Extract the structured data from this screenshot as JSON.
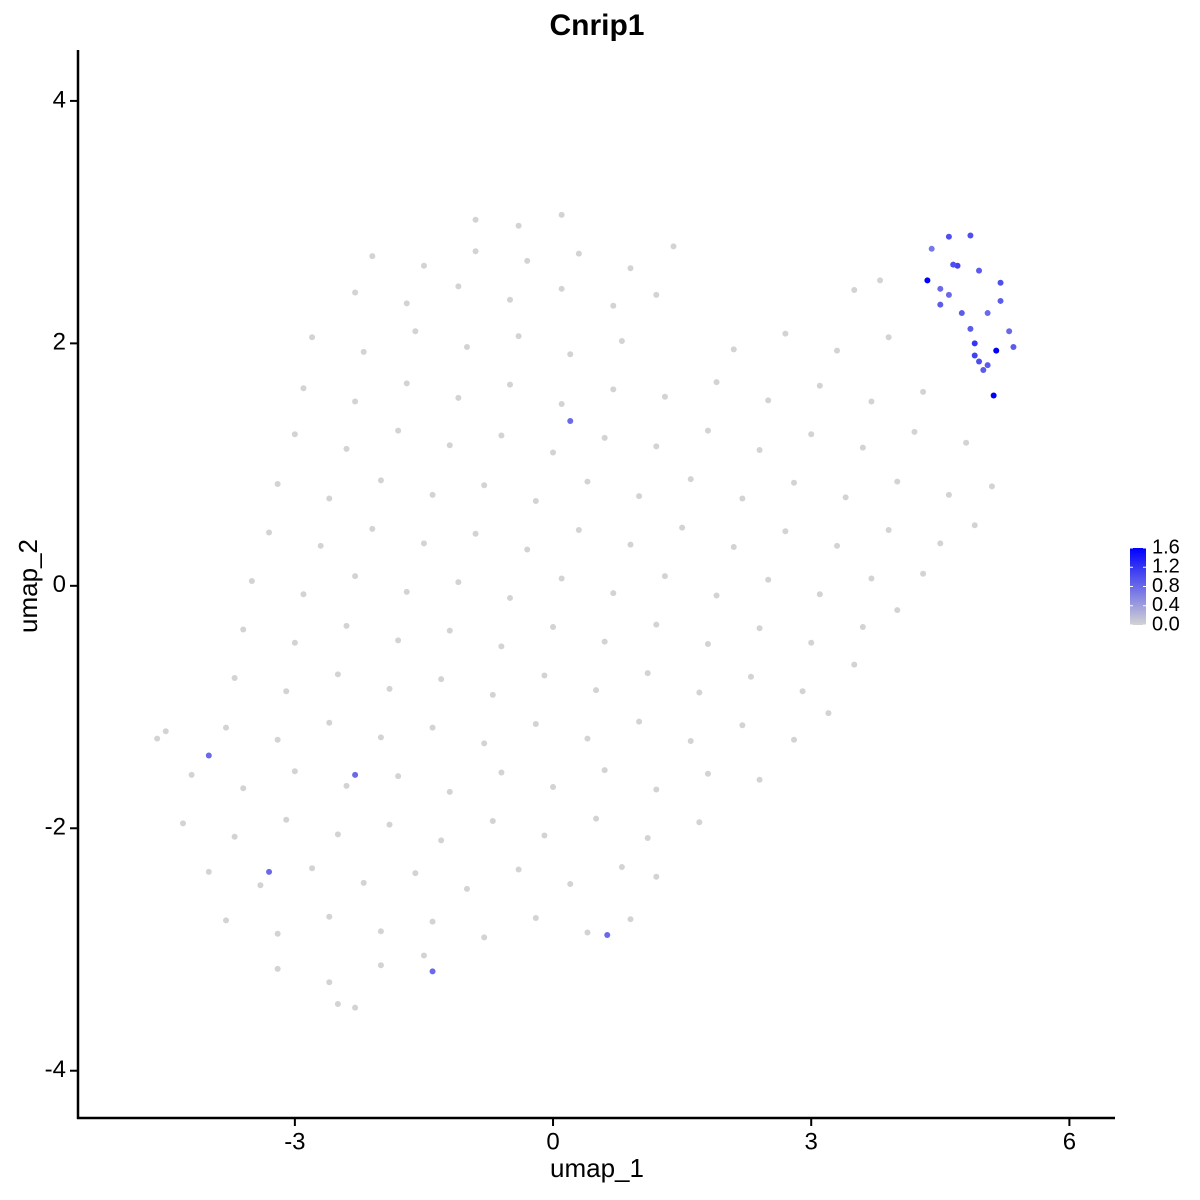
{
  "chart_data": {
    "type": "scatter",
    "title": "Cnrip1",
    "x_label": "umap_1",
    "y_label": "umap_2",
    "x": [
      -0.9,
      -0.4,
      0.1,
      -2.1,
      -1.5,
      -0.9,
      -0.3,
      0.3,
      0.9,
      1.4,
      -2.3,
      -1.7,
      -1.1,
      -0.5,
      0.1,
      0.7,
      1.2,
      3.5,
      3.8,
      -2.8,
      -2.2,
      -1.6,
      -1.0,
      -0.4,
      0.2,
      0.8,
      2.1,
      2.7,
      3.3,
      3.9,
      -2.9,
      -2.3,
      -1.7,
      -1.1,
      -0.5,
      0.1,
      0.7,
      1.3,
      1.9,
      2.5,
      3.1,
      3.7,
      4.3,
      -3.0,
      -2.4,
      -1.8,
      -1.2,
      -0.6,
      0.0,
      0.6,
      1.2,
      1.8,
      2.4,
      3.0,
      3.6,
      4.2,
      4.8,
      -3.2,
      -2.6,
      -2.0,
      -1.4,
      -0.8,
      -0.2,
      0.4,
      1.0,
      1.6,
      2.2,
      2.8,
      3.4,
      4.0,
      4.6,
      5.1,
      -3.3,
      -2.7,
      -2.1,
      -1.5,
      -0.9,
      -0.3,
      0.3,
      0.9,
      1.5,
      2.1,
      2.7,
      3.3,
      3.9,
      4.5,
      4.9,
      -3.5,
      -2.9,
      -2.3,
      -1.7,
      -1.1,
      -0.5,
      0.1,
      0.7,
      1.3,
      1.9,
      2.5,
      3.1,
      3.7,
      4.3,
      -3.6,
      -3.0,
      -2.4,
      -1.8,
      -1.2,
      -0.6,
      0.0,
      0.6,
      1.2,
      1.8,
      2.4,
      3.0,
      3.6,
      4.0,
      -3.7,
      -3.1,
      -2.5,
      -1.9,
      -1.3,
      -0.7,
      -0.1,
      0.5,
      1.1,
      1.7,
      2.3,
      2.9,
      3.5,
      -4.6,
      -4.5,
      -3.8,
      -3.2,
      -2.6,
      -2.0,
      -1.4,
      -0.8,
      -0.2,
      0.4,
      1.0,
      1.6,
      2.2,
      2.8,
      3.2,
      -4.2,
      -3.6,
      -3.0,
      -2.4,
      -1.8,
      -1.2,
      -0.6,
      0.0,
      0.6,
      1.2,
      1.8,
      2.4,
      -4.3,
      -3.7,
      -3.1,
      -2.5,
      -1.9,
      -1.3,
      -0.7,
      -0.1,
      0.5,
      1.1,
      1.7,
      -4.0,
      -3.4,
      -2.8,
      -2.2,
      -1.6,
      -1.0,
      -0.4,
      0.2,
      0.8,
      1.2,
      -3.8,
      -3.2,
      -2.6,
      -2.0,
      -1.4,
      -0.8,
      -0.2,
      0.4,
      0.9,
      -3.2,
      -2.6,
      -2.0,
      -1.5,
      -2.5,
      -2.3,
      4.35,
      4.5,
      4.6,
      4.4,
      4.7,
      4.75,
      4.85,
      4.95,
      5.05,
      5.2,
      5.3,
      4.85,
      4.9,
      4.95,
      5.05,
      5.15,
      5.12,
      5.35,
      4.5,
      4.65,
      5.2,
      4.9,
      5.0,
      4.6,
      0.2,
      -4.0,
      -2.3,
      -3.3,
      -1.4,
      0.63
    ],
    "y": [
      3.02,
      2.97,
      3.06,
      2.72,
      2.64,
      2.76,
      2.68,
      2.74,
      2.62,
      2.8,
      2.42,
      2.33,
      2.47,
      2.36,
      2.45,
      2.31,
      2.4,
      2.44,
      2.52,
      2.05,
      1.93,
      2.1,
      1.97,
      2.06,
      1.91,
      2.02,
      1.95,
      2.08,
      1.94,
      2.05,
      1.63,
      1.52,
      1.67,
      1.55,
      1.66,
      1.5,
      1.62,
      1.56,
      1.68,
      1.53,
      1.65,
      1.52,
      1.6,
      1.25,
      1.13,
      1.28,
      1.16,
      1.24,
      1.1,
      1.22,
      1.15,
      1.28,
      1.12,
      1.25,
      1.14,
      1.27,
      1.18,
      0.84,
      0.72,
      0.87,
      0.75,
      0.83,
      0.7,
      0.86,
      0.74,
      0.88,
      0.72,
      0.85,
      0.73,
      0.86,
      0.75,
      0.82,
      0.44,
      0.33,
      0.47,
      0.35,
      0.43,
      0.3,
      0.46,
      0.34,
      0.48,
      0.32,
      0.45,
      0.33,
      0.46,
      0.35,
      0.5,
      0.04,
      -0.07,
      0.08,
      -0.05,
      0.03,
      -0.1,
      0.06,
      -0.06,
      0.08,
      -0.08,
      0.05,
      -0.07,
      0.06,
      0.1,
      -0.36,
      -0.47,
      -0.33,
      -0.45,
      -0.37,
      -0.5,
      -0.34,
      -0.46,
      -0.32,
      -0.48,
      -0.35,
      -0.47,
      -0.34,
      -0.2,
      -0.76,
      -0.87,
      -0.73,
      -0.85,
      -0.77,
      -0.9,
      -0.74,
      -0.86,
      -0.72,
      -0.88,
      -0.75,
      -0.87,
      -0.65,
      -1.26,
      -1.2,
      -1.17,
      -1.27,
      -1.13,
      -1.25,
      -1.17,
      -1.3,
      -1.14,
      -1.26,
      -1.12,
      -1.28,
      -1.15,
      -1.27,
      -1.05,
      -1.56,
      -1.67,
      -1.53,
      -1.65,
      -1.57,
      -1.7,
      -1.54,
      -1.66,
      -1.52,
      -1.68,
      -1.55,
      -1.6,
      -1.96,
      -2.07,
      -1.93,
      -2.05,
      -1.97,
      -2.1,
      -1.94,
      -2.06,
      -1.92,
      -2.08,
      -1.95,
      -2.36,
      -2.47,
      -2.33,
      -2.45,
      -2.37,
      -2.5,
      -2.34,
      -2.46,
      -2.32,
      -2.4,
      -2.76,
      -2.87,
      -2.73,
      -2.85,
      -2.77,
      -2.9,
      -2.74,
      -2.86,
      -2.75,
      -3.16,
      -3.27,
      -3.13,
      -3.05,
      -3.45,
      -3.48,
      2.52,
      2.32,
      2.88,
      2.78,
      2.64,
      2.25,
      2.89,
      2.6,
      2.25,
      2.5,
      2.1,
      2.12,
      2.0,
      1.85,
      1.82,
      1.94,
      1.57,
      1.97,
      2.45,
      2.65,
      2.35,
      1.9,
      1.78,
      2.4,
      1.36,
      -1.4,
      -1.56,
      -2.36,
      -3.18,
      -2.88
    ],
    "expression": [
      0,
      0,
      0,
      0,
      0,
      0,
      0,
      0,
      0,
      0,
      0,
      0,
      0,
      0,
      0,
      0,
      0,
      0,
      0,
      0,
      0,
      0,
      0,
      0,
      0,
      0,
      0,
      0,
      0,
      0,
      0,
      0,
      0,
      0,
      0,
      0,
      0,
      0,
      0,
      0,
      0,
      0,
      0,
      0,
      0,
      0,
      0,
      0,
      0,
      0,
      0,
      0,
      0,
      0,
      0,
      0,
      0,
      0,
      0,
      0,
      0,
      0,
      0,
      0,
      0,
      0,
      0,
      0,
      0,
      0,
      0,
      0,
      0,
      0,
      0,
      0,
      0,
      0,
      0,
      0,
      0,
      0,
      0,
      0,
      0,
      0,
      0,
      0,
      0,
      0,
      0,
      0,
      0,
      0,
      0,
      0,
      0,
      0,
      0,
      0,
      0,
      0,
      0,
      0,
      0,
      0,
      0,
      0,
      0,
      0,
      0,
      0,
      0,
      0,
      0,
      0,
      0,
      0,
      0,
      0,
      0,
      0,
      0,
      0,
      0,
      0,
      0,
      0,
      0,
      0,
      0,
      0,
      0,
      0,
      0,
      0,
      0,
      0,
      0,
      0,
      0,
      0,
      0,
      0,
      0,
      0,
      0,
      0,
      0,
      0,
      0,
      0,
      0,
      0,
      0,
      0,
      0,
      0,
      0,
      0,
      0,
      0,
      0,
      0,
      0,
      0,
      0,
      0,
      0,
      0,
      0,
      0,
      0,
      0,
      0,
      0,
      0,
      0,
      0,
      0,
      0,
      0,
      0,
      0,
      0,
      0,
      0,
      0,
      0,
      0,
      0,
      1.6,
      0.9,
      1.0,
      0.7,
      1.1,
      0.9,
      1.0,
      0.9,
      0.8,
      1.0,
      0.8,
      0.9,
      1.2,
      1.0,
      0.9,
      1.6,
      1.6,
      0.9,
      0.8,
      1.0,
      0.9,
      1.1,
      0.9,
      0.8,
      0.8,
      0.8,
      0.8,
      0.8,
      0.8,
      0.8
    ],
    "xlim": [
      -5.52,
      6.53
    ],
    "ylim": [
      -4.39,
      4.42
    ],
    "xticks": [
      -3,
      0,
      3,
      6
    ],
    "yticks": [
      -4,
      -2,
      0,
      2,
      4
    ],
    "colorbar": {
      "colors": [
        "#d3d3d3",
        "#0000ff"
      ],
      "lim": [
        0,
        1.6
      ],
      "ticks": [
        {
          "value": 0,
          "label": "0.0"
        },
        {
          "value": 0.4,
          "label": "0.4"
        },
        {
          "value": 0.8,
          "label": "0.8"
        },
        {
          "value": 1.2,
          "label": "1.2"
        },
        {
          "value": 1.6,
          "label": "1.6"
        }
      ]
    }
  }
}
